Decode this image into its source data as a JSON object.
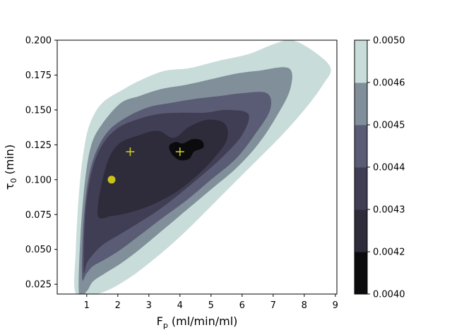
{
  "chart_data": {
    "type": "contour",
    "xlabel": "F",
    "xlabel_sub": "p",
    "xlabel_units": " (ml/min/ml)",
    "ylabel": "τ",
    "ylabel_sub": "0",
    "ylabel_units": " (min)",
    "xlim": [
      0.05,
      9.05
    ],
    "ylim": [
      0.018,
      0.2
    ],
    "xticks": [
      "1",
      "2",
      "3",
      "4",
      "5",
      "6",
      "7",
      "8",
      "9"
    ],
    "xtick_values": [
      1,
      2,
      3,
      4,
      5,
      6,
      7,
      8,
      9
    ],
    "yticks": [
      "0.025",
      "0.050",
      "0.075",
      "0.100",
      "0.125",
      "0.150",
      "0.175",
      "0.200"
    ],
    "ytick_values": [
      0.025,
      0.05,
      0.075,
      0.1,
      0.125,
      0.15,
      0.175,
      0.2
    ],
    "levels": [
      0.004,
      0.0042,
      0.0043,
      0.0044,
      0.0045,
      0.0046,
      0.005
    ],
    "colorbar_ticks": [
      "0.0040",
      "0.0042",
      "0.0043",
      "0.0044",
      "0.0045",
      "0.0046",
      "0.0050"
    ],
    "colors": [
      "#0b0b0e",
      "#2e2c3a",
      "#403e54",
      "#5a5b74",
      "#808f9a",
      "#c8dcd9"
    ],
    "regions": [
      {
        "band": 5,
        "points": [
          [
            0.65,
            0.018
          ],
          [
            0.65,
            0.05
          ],
          [
            0.75,
            0.09
          ],
          [
            0.9,
            0.12
          ],
          [
            1.1,
            0.14
          ],
          [
            1.5,
            0.155
          ],
          [
            2.2,
            0.165
          ],
          [
            2.8,
            0.172
          ],
          [
            3.5,
            0.178
          ],
          [
            4.3,
            0.18
          ],
          [
            5.2,
            0.185
          ],
          [
            6.2,
            0.19
          ],
          [
            7.0,
            0.197
          ],
          [
            7.6,
            0.2
          ],
          [
            8.3,
            0.192
          ],
          [
            8.85,
            0.18
          ],
          [
            8.6,
            0.168
          ],
          [
            8.0,
            0.15
          ],
          [
            7.2,
            0.13
          ],
          [
            6.3,
            0.11
          ],
          [
            5.4,
            0.09
          ],
          [
            4.6,
            0.072
          ],
          [
            3.8,
            0.055
          ],
          [
            3.0,
            0.04
          ],
          [
            2.4,
            0.03
          ],
          [
            1.8,
            0.022
          ],
          [
            1.3,
            0.018
          ]
        ]
      },
      {
        "band": 4,
        "points": [
          [
            0.75,
            0.018
          ],
          [
            0.8,
            0.06
          ],
          [
            0.95,
            0.1
          ],
          [
            1.15,
            0.125
          ],
          [
            1.5,
            0.14
          ],
          [
            2.1,
            0.155
          ],
          [
            2.7,
            0.16
          ],
          [
            3.4,
            0.165
          ],
          [
            4.2,
            0.168
          ],
          [
            5.0,
            0.172
          ],
          [
            5.8,
            0.176
          ],
          [
            6.5,
            0.178
          ],
          [
            7.5,
            0.18
          ],
          [
            7.55,
            0.165
          ],
          [
            7.1,
            0.145
          ],
          [
            6.5,
            0.125
          ],
          [
            5.8,
            0.108
          ],
          [
            5.0,
            0.093
          ],
          [
            4.2,
            0.078
          ],
          [
            3.4,
            0.063
          ],
          [
            2.7,
            0.05
          ],
          [
            2.1,
            0.04
          ],
          [
            1.6,
            0.033
          ],
          [
            1.2,
            0.027
          ],
          [
            1.0,
            0.02
          ]
        ]
      },
      {
        "band": 3,
        "points": [
          [
            0.85,
            0.03
          ],
          [
            0.9,
            0.07
          ],
          [
            1.05,
            0.1
          ],
          [
            1.3,
            0.12
          ],
          [
            1.7,
            0.135
          ],
          [
            2.3,
            0.145
          ],
          [
            3.0,
            0.152
          ],
          [
            3.7,
            0.155
          ],
          [
            4.5,
            0.158
          ],
          [
            5.3,
            0.16
          ],
          [
            6.0,
            0.162
          ],
          [
            6.8,
            0.162
          ],
          [
            6.9,
            0.15
          ],
          [
            6.4,
            0.132
          ],
          [
            5.8,
            0.115
          ],
          [
            5.0,
            0.1
          ],
          [
            4.2,
            0.085
          ],
          [
            3.4,
            0.072
          ],
          [
            2.7,
            0.06
          ],
          [
            2.1,
            0.05
          ],
          [
            1.6,
            0.043
          ],
          [
            1.2,
            0.038
          ],
          [
            1.0,
            0.033
          ]
        ]
      },
      {
        "band": 2,
        "points": [
          [
            0.9,
            0.035
          ],
          [
            0.95,
            0.075
          ],
          [
            1.15,
            0.105
          ],
          [
            1.5,
            0.125
          ],
          [
            2.0,
            0.137
          ],
          [
            2.6,
            0.143
          ],
          [
            3.3,
            0.147
          ],
          [
            4.0,
            0.148
          ],
          [
            4.8,
            0.148
          ],
          [
            5.5,
            0.15
          ],
          [
            6.2,
            0.147
          ],
          [
            6.0,
            0.132
          ],
          [
            5.4,
            0.117
          ],
          [
            4.7,
            0.103
          ],
          [
            4.0,
            0.09
          ],
          [
            3.3,
            0.078
          ],
          [
            2.6,
            0.068
          ],
          [
            2.0,
            0.06
          ],
          [
            1.5,
            0.053
          ],
          [
            1.15,
            0.045
          ],
          [
            1.0,
            0.04
          ]
        ]
      },
      {
        "band": 1,
        "points": [
          [
            1.35,
            0.075
          ],
          [
            1.6,
            0.108
          ],
          [
            2.0,
            0.125
          ],
          [
            2.7,
            0.132
          ],
          [
            3.3,
            0.135
          ],
          [
            3.8,
            0.13
          ],
          [
            4.3,
            0.138
          ],
          [
            4.9,
            0.143
          ],
          [
            5.45,
            0.14
          ],
          [
            5.5,
            0.128
          ],
          [
            5.0,
            0.113
          ],
          [
            4.4,
            0.1
          ],
          [
            3.8,
            0.09
          ],
          [
            3.0,
            0.081
          ],
          [
            2.3,
            0.076
          ],
          [
            1.8,
            0.074
          ]
        ]
      },
      {
        "band": 0,
        "points": [
          [
            3.65,
            0.124
          ],
          [
            3.75,
            0.118
          ],
          [
            4.0,
            0.114
          ],
          [
            4.3,
            0.115
          ],
          [
            4.45,
            0.12
          ],
          [
            4.75,
            0.123
          ],
          [
            4.7,
            0.128
          ],
          [
            4.4,
            0.129
          ],
          [
            4.1,
            0.126
          ],
          [
            3.85,
            0.127
          ]
        ]
      }
    ],
    "markers": [
      {
        "type": "circle",
        "x": 1.8,
        "y": 0.1,
        "color": "#c8c21a"
      },
      {
        "type": "plus",
        "x": 2.4,
        "y": 0.12,
        "color": "#d4d020"
      },
      {
        "type": "plus",
        "x": 4.0,
        "y": 0.12,
        "color": "#d4d020"
      }
    ]
  }
}
